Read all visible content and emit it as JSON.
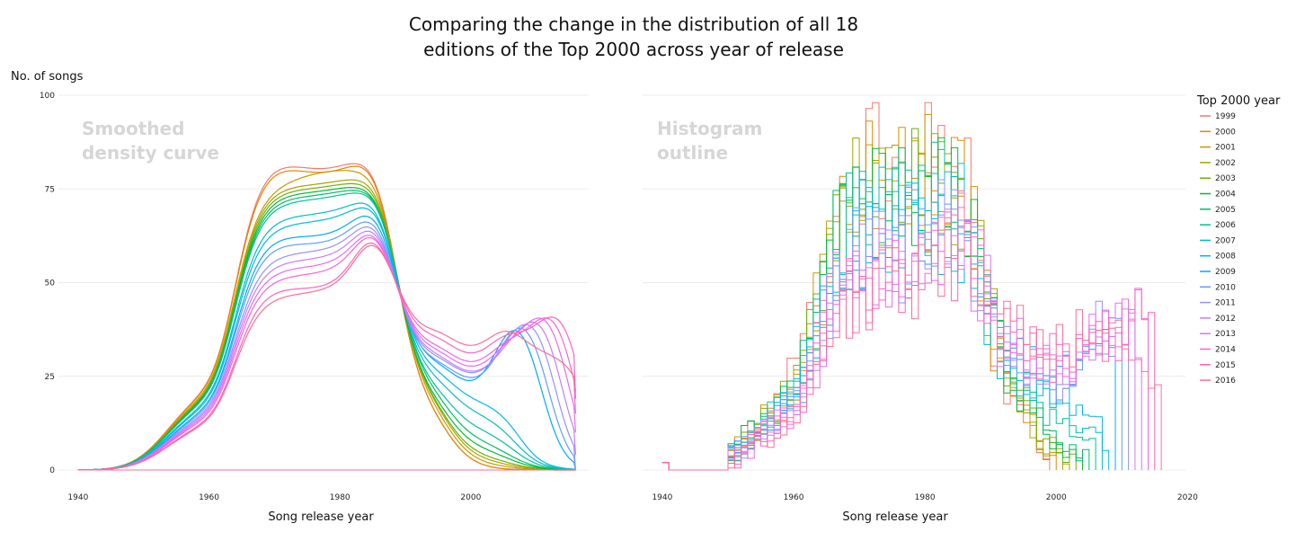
{
  "title_lines": [
    "Comparing the change in the distribution of all 18",
    "editions of the Top 2000 across year of release"
  ],
  "chart_data": [
    {
      "type": "line",
      "panel_label_lines": [
        "Smoothed",
        "density curve"
      ],
      "xlabel": "Song release year",
      "ylabel": "No. of songs",
      "x_ticks": [
        1940,
        1960,
        1980,
        2000
      ],
      "y_ticks": [
        0,
        25,
        50,
        75,
        100
      ],
      "xlim": [
        1937,
        2018
      ],
      "ylim": [
        0,
        100
      ],
      "grid": true,
      "curve_end_x": 2016,
      "component_years": [
        1968,
        1978,
        1984,
        1992,
        2002,
        2012
      ],
      "series": [
        {
          "name": "1999",
          "color": "#f8766d",
          "values": [
            83,
            80,
            64,
            17,
            0,
            0
          ],
          "tail": []
        },
        {
          "name": "2000",
          "color": "#e58700",
          "values": [
            82,
            79,
            64,
            17,
            0,
            0
          ],
          "tail": []
        },
        {
          "name": "2001",
          "color": "#c99800",
          "values": [
            77,
            79,
            60,
            19,
            1,
            0
          ],
          "tail": []
        },
        {
          "name": "2002",
          "color": "#a3a500",
          "values": [
            76,
            76,
            58,
            20,
            2,
            0
          ],
          "tail": []
        },
        {
          "name": "2003",
          "color": "#6bb100",
          "values": [
            75,
            75,
            57,
            20,
            3,
            0
          ],
          "tail": []
        },
        {
          "name": "2004",
          "color": "#00ba38",
          "values": [
            74,
            74,
            56,
            20,
            5,
            0
          ],
          "tail": []
        },
        {
          "name": "2005",
          "color": "#00be67",
          "values": [
            73,
            73,
            55,
            21,
            7,
            0
          ],
          "tail": []
        },
        {
          "name": "2006",
          "color": "#00c19a",
          "values": [
            72,
            72,
            55,
            21,
            10,
            1
          ],
          "tail": []
        },
        {
          "name": "2007",
          "color": "#00bfc4",
          "values": [
            68,
            68,
            54,
            22,
            14,
            2
          ],
          "tail": []
        },
        {
          "name": "2008",
          "color": "#00b9e3",
          "values": [
            66,
            66,
            53,
            23,
            17,
            5
          ],
          "tail": []
        },
        {
          "name": "2009",
          "color": "#00a9ff",
          "values": [
            63,
            62,
            52,
            24,
            20,
            10
          ],
          "tail": [
            [
              2009,
              29
            ],
            [
              2016,
              0
            ]
          ]
        },
        {
          "name": "2010",
          "color": "#619cff",
          "values": [
            61,
            60,
            51,
            24,
            21,
            14
          ],
          "tail": [
            [
              2010,
              30
            ],
            [
              2016,
              0
            ]
          ]
        },
        {
          "name": "2011",
          "color": "#9590ff",
          "values": [
            58,
            58,
            50,
            25,
            22,
            19
          ],
          "tail": [
            [
              2011,
              31
            ],
            [
              2016,
              0
            ]
          ]
        },
        {
          "name": "2012",
          "color": "#c77cff",
          "values": [
            56,
            56,
            49,
            26,
            22,
            22
          ],
          "tail": [
            [
              2012,
              32
            ],
            [
              2016,
              4
            ]
          ]
        },
        {
          "name": "2013",
          "color": "#e76bf3",
          "values": [
            54,
            54,
            48,
            27,
            23,
            25
          ],
          "tail": [
            [
              2013,
              33
            ],
            [
              2016,
              10
            ]
          ]
        },
        {
          "name": "2014",
          "color": "#fa62db",
          "values": [
            52,
            52,
            48,
            28,
            24,
            27
          ],
          "tail": [
            [
              2014,
              33
            ],
            [
              2016,
              15
            ]
          ]
        },
        {
          "name": "2015",
          "color": "#ff62bc",
          "values": [
            49,
            48,
            47,
            30,
            26,
            29
          ],
          "tail": [
            [
              2015,
              33
            ],
            [
              2016,
              19
            ]
          ]
        },
        {
          "name": "2016",
          "color": "#ff6c91",
          "values": [
            47,
            47,
            46,
            31,
            28,
            30
          ],
          "tail": [
            [
              2016,
              21
            ]
          ]
        }
      ]
    },
    {
      "type": "bar",
      "panel_label_lines": [
        "Histogram",
        "outline"
      ],
      "xlabel": "Song release year",
      "x_ticks": [
        1940,
        1960,
        1980,
        2000,
        2020
      ],
      "xlim": [
        1937,
        2020.5
      ],
      "ylim": [
        0,
        100
      ],
      "bin_start": 1940,
      "bin_end": 2017,
      "bin_width": 1
    }
  ],
  "legend": {
    "title": "Top 2000 year",
    "position": "right",
    "items": [
      "1999",
      "2000",
      "2001",
      "2002",
      "2003",
      "2004",
      "2005",
      "2006",
      "2007",
      "2008",
      "2009",
      "2010",
      "2011",
      "2012",
      "2013",
      "2014",
      "2015",
      "2016"
    ]
  }
}
